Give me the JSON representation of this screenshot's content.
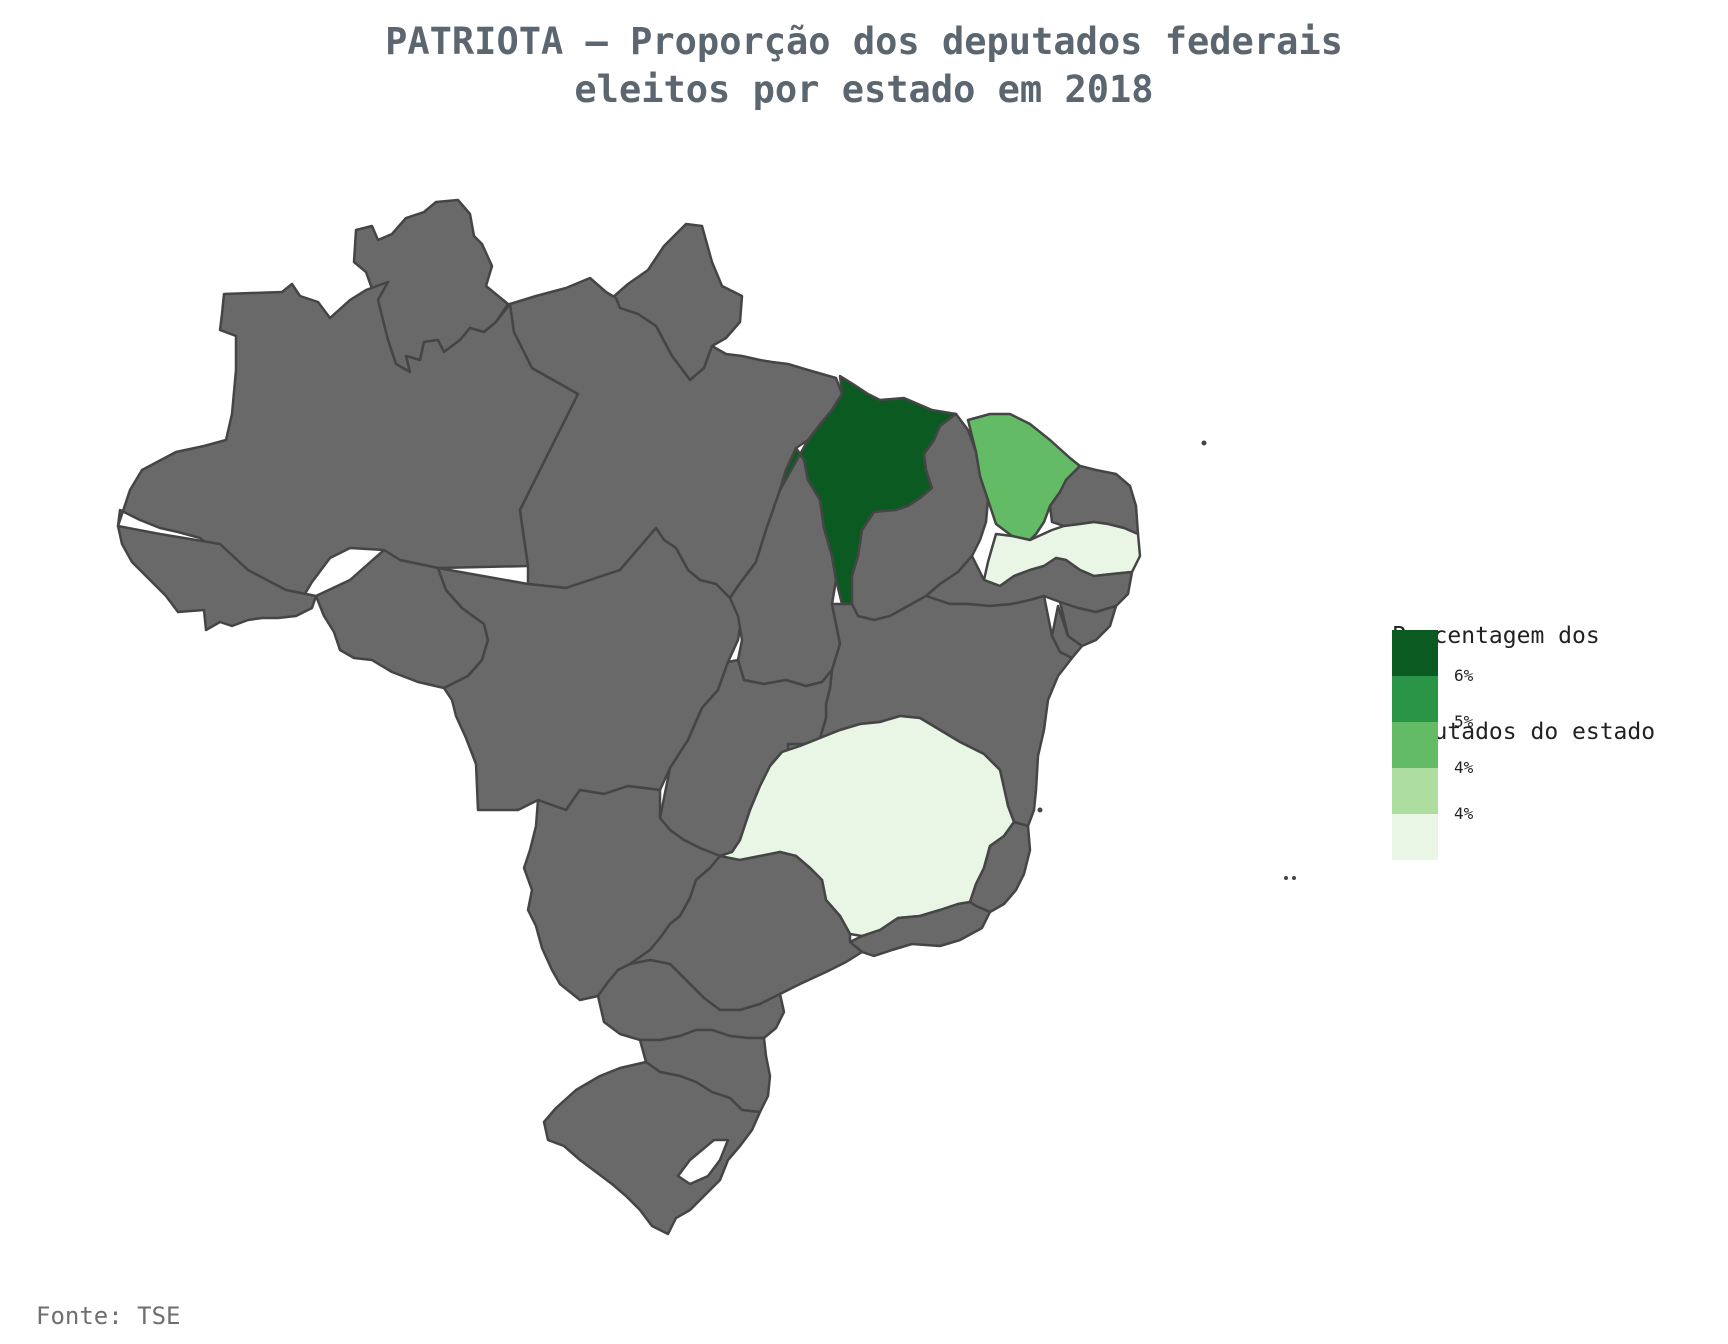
{
  "title_line1": "PATRIOTA – Proporção dos deputados federais",
  "title_line2": "eleitos por estado em 2018",
  "legend": {
    "title_line1": "Porcentagem dos",
    "title_line2": "deputados do estado",
    "colors": [
      "#0b5a22",
      "#2a9447",
      "#64bb65",
      "#aede9f",
      "#eaf6e5"
    ],
    "ticks": [
      "6%",
      "5%",
      "4%",
      "4%"
    ]
  },
  "source": "Fonte: TSE",
  "colors": {
    "no_data": "#696969",
    "border": "#454545"
  },
  "states": [
    {
      "name": "AM",
      "fill": "no_data"
    },
    {
      "name": "PA",
      "fill": "no_data"
    },
    {
      "name": "MA",
      "fill": "6%"
    },
    {
      "name": "CE",
      "fill": "4%"
    },
    {
      "name": "PB",
      "fill": "4%-"
    },
    {
      "name": "MG",
      "fill": "4%-"
    }
  ]
}
